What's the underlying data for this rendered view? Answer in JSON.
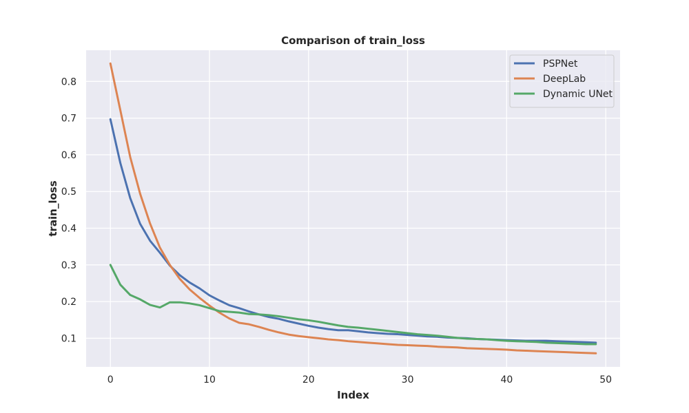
{
  "chart_data": {
    "type": "line",
    "title": "Comparison of train_loss",
    "xlabel": "Index",
    "ylabel": "train_loss",
    "xlim": [
      -2.45,
      51.45
    ],
    "ylim": [
      0.022,
      0.885
    ],
    "xticks": [
      0,
      10,
      20,
      30,
      40,
      50
    ],
    "yticks": [
      0.1,
      0.2,
      0.3,
      0.4,
      0.5,
      0.6,
      0.7,
      0.8
    ],
    "grid": true,
    "background": "#eaeaf2",
    "legend_position": "top-right",
    "x": [
      0,
      1,
      2,
      3,
      4,
      5,
      6,
      7,
      8,
      9,
      10,
      11,
      12,
      13,
      14,
      15,
      16,
      17,
      18,
      19,
      20,
      21,
      22,
      23,
      24,
      25,
      26,
      27,
      28,
      29,
      30,
      31,
      32,
      33,
      34,
      35,
      36,
      37,
      38,
      39,
      40,
      41,
      42,
      43,
      44,
      45,
      46,
      47,
      48,
      49
    ],
    "series": [
      {
        "name": "PSPNet",
        "color": "#4c72b0",
        "values": [
          0.697,
          0.578,
          0.482,
          0.412,
          0.366,
          0.333,
          0.298,
          0.272,
          0.252,
          0.236,
          0.217,
          0.203,
          0.19,
          0.182,
          0.173,
          0.165,
          0.158,
          0.153,
          0.146,
          0.14,
          0.134,
          0.129,
          0.125,
          0.122,
          0.122,
          0.119,
          0.116,
          0.114,
          0.112,
          0.111,
          0.109,
          0.107,
          0.105,
          0.104,
          0.102,
          0.101,
          0.1,
          0.098,
          0.097,
          0.096,
          0.095,
          0.094,
          0.093,
          0.093,
          0.093,
          0.092,
          0.091,
          0.09,
          0.089,
          0.088
        ]
      },
      {
        "name": "DeepLab",
        "color": "#dd8452",
        "values": [
          0.849,
          0.722,
          0.594,
          0.494,
          0.413,
          0.347,
          0.3,
          0.262,
          0.233,
          0.21,
          0.189,
          0.17,
          0.154,
          0.142,
          0.138,
          0.131,
          0.123,
          0.116,
          0.11,
          0.106,
          0.103,
          0.1,
          0.097,
          0.095,
          0.092,
          0.09,
          0.088,
          0.086,
          0.084,
          0.082,
          0.081,
          0.08,
          0.079,
          0.077,
          0.076,
          0.075,
          0.073,
          0.072,
          0.071,
          0.07,
          0.069,
          0.067,
          0.066,
          0.065,
          0.064,
          0.063,
          0.062,
          0.061,
          0.06,
          0.059
        ]
      },
      {
        "name": "Dynamic UNet",
        "color": "#55a868",
        "values": [
          0.3,
          0.246,
          0.218,
          0.206,
          0.191,
          0.184,
          0.198,
          0.198,
          0.195,
          0.19,
          0.182,
          0.174,
          0.172,
          0.17,
          0.166,
          0.165,
          0.163,
          0.16,
          0.156,
          0.152,
          0.149,
          0.145,
          0.14,
          0.135,
          0.131,
          0.129,
          0.126,
          0.123,
          0.12,
          0.117,
          0.114,
          0.111,
          0.109,
          0.107,
          0.104,
          0.101,
          0.099,
          0.098,
          0.097,
          0.095,
          0.093,
          0.092,
          0.091,
          0.09,
          0.088,
          0.087,
          0.086,
          0.085,
          0.084,
          0.084
        ]
      }
    ]
  }
}
